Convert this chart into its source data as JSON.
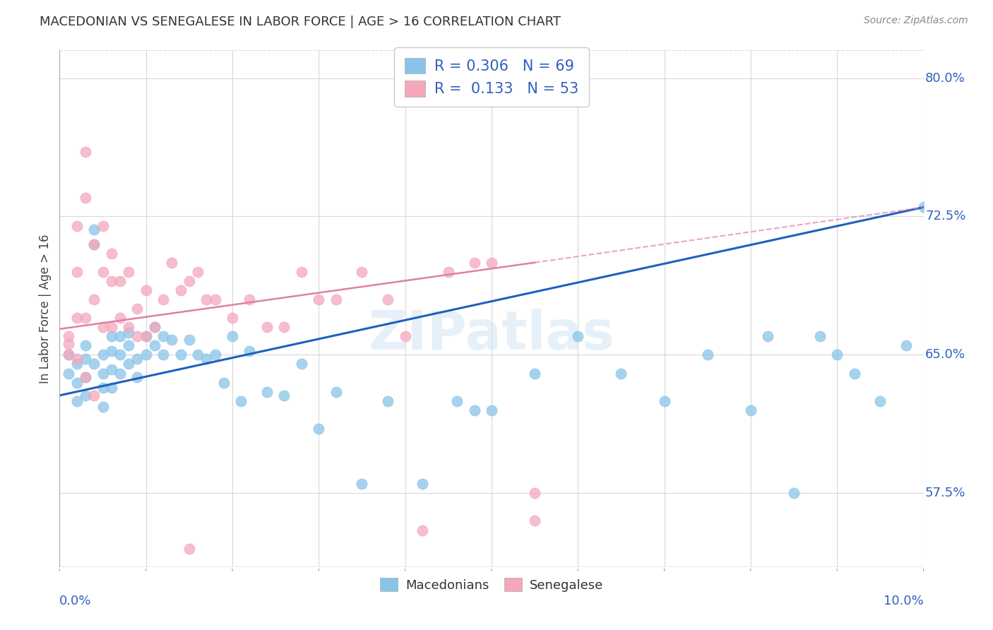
{
  "title": "MACEDONIAN VS SENEGALESE IN LABOR FORCE | AGE > 16 CORRELATION CHART",
  "source": "Source: ZipAtlas.com",
  "ylabel": "In Labor Force | Age > 16",
  "ytick_vals": [
    0.575,
    0.65,
    0.725,
    0.8
  ],
  "ytick_labels": [
    "57.5%",
    "65.0%",
    "72.5%",
    "80.0%"
  ],
  "xmin": 0.0,
  "xmax": 0.1,
  "ymin": 0.535,
  "ymax": 0.815,
  "blue_color": "#89C4E8",
  "pink_color": "#F4A7BB",
  "line_blue": "#2060C0",
  "line_pink": "#E080A0",
  "legend_R_blue": "0.306",
  "legend_N_blue": "69",
  "legend_R_pink": "0.133",
  "legend_N_pink": "53",
  "blue_x": [
    0.001,
    0.001,
    0.002,
    0.002,
    0.002,
    0.003,
    0.003,
    0.003,
    0.003,
    0.004,
    0.004,
    0.004,
    0.005,
    0.005,
    0.005,
    0.005,
    0.006,
    0.006,
    0.006,
    0.006,
    0.007,
    0.007,
    0.007,
    0.008,
    0.008,
    0.008,
    0.009,
    0.009,
    0.01,
    0.01,
    0.011,
    0.011,
    0.012,
    0.012,
    0.013,
    0.014,
    0.015,
    0.016,
    0.017,
    0.018,
    0.019,
    0.02,
    0.021,
    0.022,
    0.024,
    0.026,
    0.028,
    0.03,
    0.032,
    0.035,
    0.038,
    0.042,
    0.046,
    0.05,
    0.055,
    0.06,
    0.065,
    0.07,
    0.075,
    0.08,
    0.082,
    0.085,
    0.088,
    0.09,
    0.092,
    0.095,
    0.098,
    0.1,
    0.048
  ],
  "blue_y": [
    0.65,
    0.64,
    0.645,
    0.635,
    0.625,
    0.655,
    0.648,
    0.638,
    0.628,
    0.718,
    0.71,
    0.645,
    0.65,
    0.64,
    0.632,
    0.622,
    0.66,
    0.652,
    0.642,
    0.632,
    0.66,
    0.65,
    0.64,
    0.662,
    0.655,
    0.645,
    0.648,
    0.638,
    0.66,
    0.65,
    0.665,
    0.655,
    0.66,
    0.65,
    0.658,
    0.65,
    0.658,
    0.65,
    0.648,
    0.65,
    0.635,
    0.66,
    0.625,
    0.652,
    0.63,
    0.628,
    0.645,
    0.61,
    0.63,
    0.58,
    0.625,
    0.58,
    0.625,
    0.62,
    0.64,
    0.66,
    0.64,
    0.625,
    0.65,
    0.62,
    0.66,
    0.575,
    0.66,
    0.65,
    0.64,
    0.625,
    0.655,
    0.73,
    0.62
  ],
  "pink_x": [
    0.001,
    0.001,
    0.002,
    0.002,
    0.002,
    0.003,
    0.003,
    0.003,
    0.004,
    0.004,
    0.005,
    0.005,
    0.005,
    0.006,
    0.006,
    0.006,
    0.007,
    0.007,
    0.008,
    0.008,
    0.009,
    0.009,
    0.01,
    0.01,
    0.011,
    0.012,
    0.013,
    0.014,
    0.015,
    0.016,
    0.017,
    0.018,
    0.02,
    0.022,
    0.024,
    0.026,
    0.028,
    0.03,
    0.032,
    0.035,
    0.038,
    0.04,
    0.042,
    0.045,
    0.048,
    0.05,
    0.055,
    0.055,
    0.001,
    0.002,
    0.003,
    0.004,
    0.015
  ],
  "pink_y": [
    0.66,
    0.65,
    0.72,
    0.695,
    0.67,
    0.76,
    0.735,
    0.67,
    0.71,
    0.68,
    0.72,
    0.695,
    0.665,
    0.705,
    0.69,
    0.665,
    0.69,
    0.67,
    0.695,
    0.665,
    0.675,
    0.66,
    0.685,
    0.66,
    0.665,
    0.68,
    0.7,
    0.685,
    0.69,
    0.695,
    0.68,
    0.68,
    0.67,
    0.68,
    0.665,
    0.665,
    0.695,
    0.68,
    0.68,
    0.695,
    0.68,
    0.66,
    0.555,
    0.695,
    0.7,
    0.7,
    0.575,
    0.56,
    0.656,
    0.648,
    0.638,
    0.628,
    0.545
  ],
  "watermark": "ZIPatlas",
  "background_color": "#ffffff",
  "grid_color": "#d8d8d8",
  "text_color": "#3060C0"
}
